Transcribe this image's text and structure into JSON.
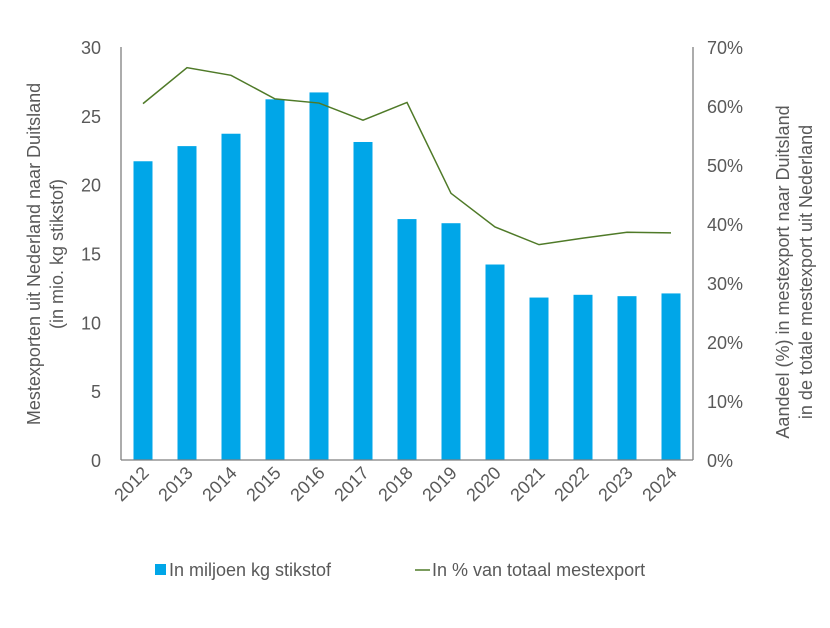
{
  "chart_data": {
    "type": "bar+line",
    "categories": [
      "2012",
      "2013",
      "2014",
      "2015",
      "2016",
      "2017",
      "2018",
      "2019",
      "2020",
      "2021",
      "2022",
      "2023",
      "2024"
    ],
    "series": [
      {
        "name": "In miljoen kg stikstof",
        "type": "bar",
        "axis": "left",
        "color": "#00a6e8",
        "values": [
          21.7,
          22.8,
          23.7,
          26.2,
          26.7,
          23.1,
          17.5,
          17.2,
          14.2,
          11.8,
          12.0,
          11.9,
          12.1
        ]
      },
      {
        "name": "In % van totaal mestexport",
        "type": "line",
        "axis": "right",
        "color": "#4f7a28",
        "values": [
          60.4,
          66.5,
          65.2,
          61.2,
          60.5,
          57.6,
          60.6,
          45.2,
          39.5,
          36.5,
          37.6,
          38.6,
          38.5
        ]
      }
    ],
    "ylabel": [
      "Mestexporten uit Nederland naar Duitsland",
      "(in mio. kg stikstof)"
    ],
    "y2label": [
      "Aandeel (%) in mestexport naar Duitsland",
      "in de totale mestexport uit Nederland"
    ],
    "ylim": [
      0,
      30
    ],
    "yticks": [
      "0",
      "5",
      "10",
      "15",
      "20",
      "25",
      "30"
    ],
    "y2lim": [
      0,
      70
    ],
    "y2ticks": [
      "0%",
      "10%",
      "20%",
      "30%",
      "40%",
      "50%",
      "60%",
      "70%"
    ],
    "legend": [
      "In miljoen kg stikstof",
      "In % van totaal mestexport"
    ],
    "legend_position": "bottom",
    "grid": false
  }
}
